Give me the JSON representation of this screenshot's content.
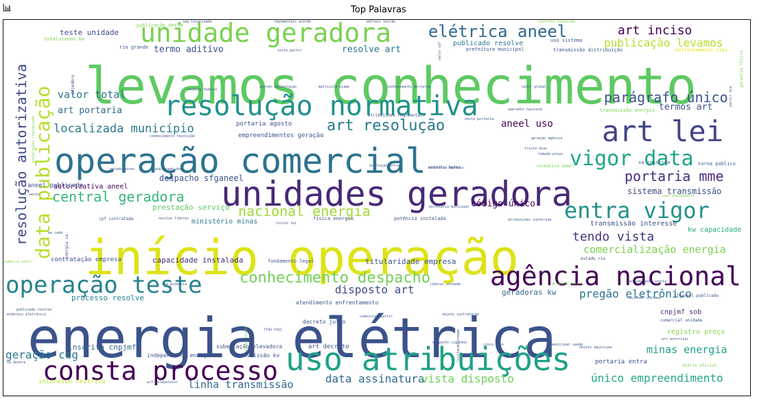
{
  "header": {
    "icon": "bar-chart-icon"
  },
  "chart_data": {
    "type": "wordcloud",
    "title": "Top Palavras",
    "colormap": "viridis",
    "words": [
      {
        "text": "levamos conhecimento",
        "weight": 100,
        "color": "#5ec962"
      },
      {
        "text": "energia elétrica",
        "weight": 98,
        "color": "#3b528b"
      },
      {
        "text": "início operação",
        "weight": 95,
        "color": "#dde318"
      },
      {
        "text": "operação comercial",
        "weight": 80,
        "color": "#2c728e"
      },
      {
        "text": "unidades geradora",
        "weight": 75,
        "color": "#482878"
      },
      {
        "text": "unidade geradora",
        "weight": 65,
        "color": "#7ad151"
      },
      {
        "text": "resolução normativa",
        "weight": 62,
        "color": "#21918c"
      },
      {
        "text": "uso atribuições",
        "weight": 60,
        "color": "#1fa187"
      },
      {
        "text": "art lei",
        "weight": 55,
        "color": "#414487"
      },
      {
        "text": "agência nacional",
        "weight": 48,
        "color": "#440154"
      },
      {
        "text": "consta processo",
        "weight": 45,
        "color": "#440154"
      },
      {
        "text": "data publicação",
        "weight": 44,
        "color": "#b5de2b"
      },
      {
        "text": "operação teste",
        "weight": 42,
        "color": "#26828e"
      },
      {
        "text": "entra vigor",
        "weight": 40,
        "color": "#21918c"
      },
      {
        "text": "vigor data",
        "weight": 38,
        "color": "#20a486"
      },
      {
        "text": "elétrica aneel",
        "weight": 32,
        "color": "#31688e"
      },
      {
        "text": "conhecimento despacho",
        "weight": 28,
        "color": "#73d056"
      },
      {
        "text": "resolução autorizativa",
        "weight": 27,
        "color": "#3e4989"
      },
      {
        "text": "nacional energia",
        "weight": 26,
        "color": "#a0da39"
      },
      {
        "text": "art resolução",
        "weight": 25,
        "color": "#2a788e"
      },
      {
        "text": "central geradora",
        "weight": 25,
        "color": "#35b779"
      },
      {
        "text": "portaria mme",
        "weight": 24,
        "color": "#472d7b"
      },
      {
        "text": "parágrafo único",
        "weight": 22,
        "color": "#3b528b"
      },
      {
        "text": "art inciso",
        "weight": 22,
        "color": "#440154"
      },
      {
        "text": "publicação levamos",
        "weight": 20,
        "color": "#b5de2b"
      },
      {
        "text": "tendo vista",
        "weight": 20,
        "color": "#46327e"
      },
      {
        "text": "localizada município",
        "weight": 19,
        "color": "#2a788e"
      },
      {
        "text": "pregão eletrônico",
        "weight": 18,
        "color": "#2c728e"
      },
      {
        "text": "comercialização energia",
        "weight": 18,
        "color": "#7ad151"
      },
      {
        "text": "geração ceg",
        "weight": 17,
        "color": "#2a788e"
      },
      {
        "text": "data assinatura",
        "weight": 17,
        "color": "#31688e"
      },
      {
        "text": "vista disposto",
        "weight": 17,
        "color": "#6ece58"
      },
      {
        "text": "único empreendimento",
        "weight": 17,
        "color": "#22a884"
      },
      {
        "text": "disposto art",
        "weight": 17,
        "color": "#3e4989"
      },
      {
        "text": "linha transmissão",
        "weight": 17,
        "color": "#31688e"
      },
      {
        "text": "minas energia",
        "weight": 16,
        "color": "#1f9e89"
      },
      {
        "text": "valor total",
        "weight": 16,
        "color": "#2c728e"
      },
      {
        "text": "aneel uso",
        "weight": 15,
        "color": "#440154"
      },
      {
        "text": "termo aditivo",
        "weight": 14,
        "color": "#3b528b"
      },
      {
        "text": "resolve art",
        "weight": 14,
        "color": "#2a788e"
      },
      {
        "text": "art portaria",
        "weight": 14,
        "color": "#31688e"
      },
      {
        "text": "termos art",
        "weight": 13,
        "color": "#3b528b"
      },
      {
        "text": "código único",
        "weight": 13,
        "color": "#440154"
      },
      {
        "text": "despacho sfganeel",
        "weight": 13,
        "color": "#3b528b"
      },
      {
        "text": "sistema transmissão",
        "weight": 12,
        "color": "#3e4989"
      },
      {
        "text": "capacidade instalada",
        "weight": 11,
        "color": "#482878"
      },
      {
        "text": "titularidade empresa",
        "weight": 11,
        "color": "#3b528b"
      },
      {
        "text": "geradoras kw",
        "weight": 11,
        "color": "#31688e"
      },
      {
        "text": "processo resolve",
        "weight": 11,
        "color": "#26828e"
      },
      {
        "text": "inscrita cnpjmf",
        "weight": 11,
        "color": "#31688e"
      },
      {
        "text": "prestação serviço",
        "weight": 11,
        "color": "#5ec962"
      },
      {
        "text": "ministério minas",
        "weight": 11,
        "color": "#2a788e"
      },
      {
        "text": "teste unidade",
        "weight": 11,
        "color": "#3e4989"
      },
      {
        "text": "autorizativa aneel",
        "weight": 10,
        "color": "#440154"
      },
      {
        "text": "aneel publicada",
        "weight": 9,
        "color": "#3b528b"
      },
      {
        "text": "cnpjmf sob",
        "weight": 10,
        "color": "#472d7b"
      },
      {
        "text": "registro preço",
        "weight": 10,
        "color": "#84d44b"
      },
      {
        "text": "transmissão interesse",
        "weight": 10,
        "color": "#3b528b"
      },
      {
        "text": "kw capacidade",
        "weight": 10,
        "color": "#22a884"
      },
      {
        "text": "publicado resolve",
        "weight": 10,
        "color": "#2a788e"
      },
      {
        "text": "portaria agosto",
        "weight": 9,
        "color": "#3b528b"
      },
      {
        "text": "empreendimentos geração",
        "weight": 9,
        "color": "#3b528b"
      },
      {
        "text": "portaria entra",
        "weight": 9,
        "color": "#3b528b"
      },
      {
        "text": "contratação empresa",
        "weight": 9,
        "color": "#3b528b"
      },
      {
        "text": "interesse restrito",
        "weight": 9,
        "color": "#bddf26"
      },
      {
        "text": "subestação elevadora",
        "weight": 8,
        "color": "#3b528b"
      },
      {
        "text": "art decreto",
        "weight": 9,
        "color": "#3b528b"
      },
      {
        "text": "transmissão kv",
        "weight": 8,
        "color": "#3b528b"
      },
      {
        "text": "independente energia",
        "weight": 8,
        "color": "#3b528b"
      },
      {
        "text": "atendimento enfrentamento",
        "weight": 8,
        "color": "#3b528b"
      },
      {
        "text": "decreto julho",
        "weight": 8,
        "color": "#3b528b"
      },
      {
        "text": "uso sistema",
        "weight": 7,
        "color": "#3b528b"
      },
      {
        "text": "prefeitura municipal",
        "weight": 7,
        "color": "#3b528b"
      },
      {
        "text": "transmissão distribuição",
        "weight": 7,
        "color": "#3b528b"
      },
      {
        "text": "enfrentamento tipo",
        "weight": 7,
        "color": "#dde318"
      },
      {
        "text": "rio grande",
        "weight": 7,
        "color": "#3b528b"
      },
      {
        "text": "totalizando kw",
        "weight": 7,
        "color": "#7ad151"
      },
      {
        "text": "publicação desta",
        "weight": 7,
        "color": "#7ad151"
      },
      {
        "text": "transmissão energia",
        "weight": 7,
        "color": "#7ad151"
      },
      {
        "text": "sa inscrita",
        "weight": 7,
        "color": "#3b528b"
      },
      {
        "text": "torna público",
        "weight": 7,
        "color": "#3b528b"
      },
      {
        "text": "física energia",
        "weight": 7,
        "color": "#3b528b"
      },
      {
        "text": "potência instalada",
        "weight": 7,
        "color": "#3b528b"
      },
      {
        "text": "fundamento legal",
        "weight": 7,
        "color": "#3b528b"
      },
      {
        "text": "comercial unidade",
        "weight": 6,
        "color": "#3b528b"
      },
      {
        "text": "sfganeel publicado",
        "weight": 6,
        "color": "#3b528b"
      },
      {
        "text": "diário oficial",
        "weight": 6,
        "color": "#7ad151"
      },
      {
        "text": "normativa aneel",
        "weight": 6,
        "color": "#7ad151"
      },
      {
        "text": "cpf contratada",
        "weight": 6,
        "color": "#3b528b"
      },
      {
        "text": "extrato termo",
        "weight": 6,
        "color": "#3b528b"
      },
      {
        "text": "estado rio",
        "weight": 6,
        "color": "#3b528b"
      },
      {
        "text": "atribuições regimentais",
        "weight": 6,
        "color": "#3b528b"
      },
      {
        "text": "garantia física",
        "weight": 6,
        "color": "#7ad151"
      },
      {
        "text": "dezembro",
        "weight": 6,
        "color": "#3b528b"
      },
      {
        "text": "energia sa",
        "weight": 6,
        "color": "#3b528b"
      },
      {
        "text": "nesta portaria",
        "weight": 5,
        "color": "#3b528b"
      },
      {
        "text": "conhecimento portaria",
        "weight": 5,
        "color": "#3b528b"
      },
      {
        "text": "valor global",
        "weight": 5,
        "color": "#3b528b"
      },
      {
        "text": "matrícula siape",
        "weight": 5,
        "color": "#3b528b"
      },
      {
        "text": "receita federal",
        "weight": 5,
        "color": "#3b528b"
      },
      {
        "text": "teste partir",
        "weight": 5,
        "color": "#3b528b"
      },
      {
        "text": "contrato concessão",
        "weight": 5,
        "color": "#7ad151"
      },
      {
        "text": "regimentais acordo",
        "weight": 5,
        "color": "#3b528b"
      },
      {
        "text": "ceg localizada",
        "weight": 5,
        "color": "#3b528b"
      },
      {
        "text": "editais leilão",
        "weight": 5,
        "color": "#3b528b"
      },
      {
        "text": "conhecimento resolução",
        "weight": 5,
        "color": "#3b528b"
      },
      {
        "text": "publicada resolve",
        "weight": 5,
        "color": "#3b528b"
      },
      {
        "text": "endereço eletrônico",
        "weight": 5,
        "color": "#3b528b"
      },
      {
        "text": "geradora eólica",
        "weight": 5,
        "color": "#7ad151"
      },
      {
        "text": "liberar unidade",
        "weight": 5,
        "color": "#3b528b"
      },
      {
        "text": "objeto contratação",
        "weight": 5,
        "color": "#3b528b"
      },
      {
        "text": "comercial partir",
        "weight": 5,
        "color": "#3b528b"
      },
      {
        "text": "considerando consta",
        "weight": 5,
        "color": "#3b528b"
      },
      {
        "text": "nacional sistema",
        "weight": 5,
        "color": "#3b528b"
      },
      {
        "text": "kw potência",
        "weight": 5,
        "color": "#3b528b"
      },
      {
        "text": "ltda cnpj",
        "weight": 5,
        "color": "#3b528b"
      },
      {
        "text": "cinco anos",
        "weight": 5,
        "color": "#3b528b"
      },
      {
        "text": "municipal saúde",
        "weight": 5,
        "color": "#3b528b"
      },
      {
        "text": "art autorizar",
        "weight": 5,
        "color": "#3b528b"
      },
      {
        "text": "trinta dias",
        "weight": 5,
        "color": "#3b528b"
      },
      {
        "text": "valor cpf",
        "weight": 5,
        "color": "#3b528b"
      },
      {
        "text": "partir dia",
        "weight": 5,
        "color": "#3b528b"
      },
      {
        "text": "eoi vento",
        "weight": 5,
        "color": "#3b528b"
      },
      {
        "text": "vigência valor",
        "weight": 5,
        "color": "#7ad151"
      },
      {
        "text": "sa devera",
        "weight": 5,
        "color": "#3b528b"
      },
      {
        "text": "art estabelecer",
        "weight": 5,
        "color": "#3b528b"
      },
      {
        "text": "publicado dou",
        "weight": 5,
        "color": "#3b528b"
      },
      {
        "text": "estado minas",
        "weight": 5,
        "color": "#3b528b"
      },
      {
        "text": "acordo deliberação",
        "weight": 5,
        "color": "#3b528b"
      },
      {
        "text": "secretaria municipal",
        "weight": 5,
        "color": "#3b528b"
      },
      {
        "text": "resolução entra",
        "weight": 5,
        "color": "#3b528b"
      },
      {
        "text": "prazo trinta",
        "weight": 5,
        "color": "#7ad151"
      },
      {
        "text": "despacho ccganeel",
        "weight": 5,
        "color": "#3b528b"
      },
      {
        "text": "kw cada",
        "weight": 5,
        "color": "#3b528b"
      },
      {
        "text": "operador nacional",
        "weight": 5,
        "color": "#3b528b"
      },
      {
        "text": "cipo atendimento",
        "weight": 5,
        "color": "#7ad151"
      },
      {
        "text": "tomada preço",
        "weight": 5,
        "color": "#3b528b"
      },
      {
        "text": "atribuições conferida",
        "weight": 5,
        "color": "#3b528b"
      },
      {
        "text": "resolve liberar",
        "weight": 5,
        "color": "#3b528b"
      },
      {
        "text": "instalações transmissão",
        "weight": 5,
        "color": "#7ad151"
      },
      {
        "text": "geração agência",
        "weight": 5,
        "color": "#3b528b"
      },
      {
        "text": "diretoria agência",
        "weight": 5,
        "color": "#3b528b"
      },
      {
        "text": "licitação pregão",
        "weight": 5,
        "color": "#3b528b"
      },
      {
        "text": "objeto aquisição",
        "weight": 5,
        "color": "#3b528b"
      },
      {
        "text": "inciso lei",
        "weight": 5,
        "color": "#3b528b"
      }
    ]
  }
}
